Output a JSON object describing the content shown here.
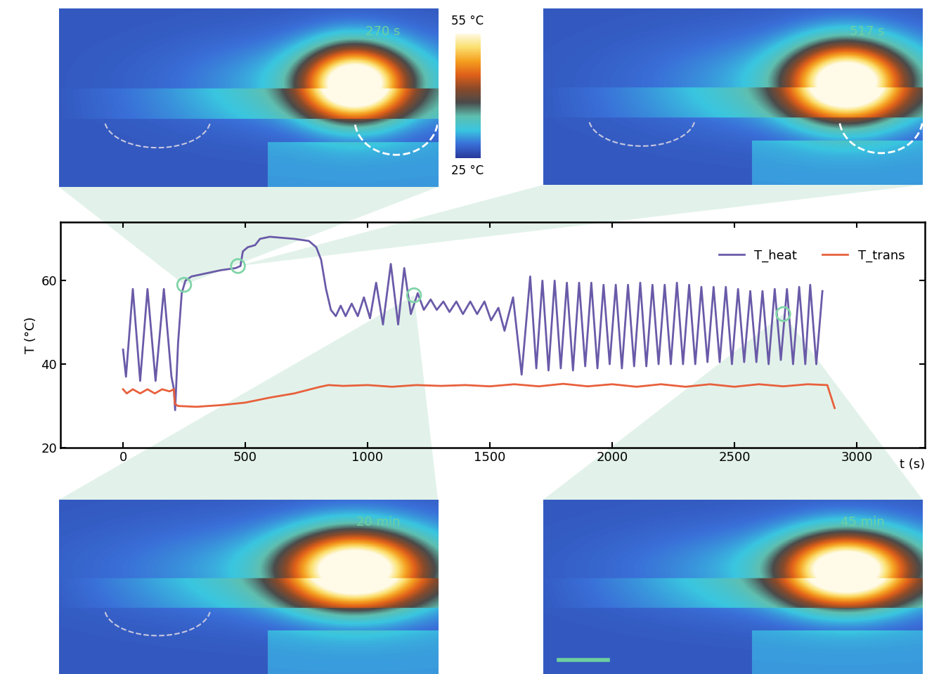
{
  "chart_data": {
    "type": "line",
    "xlabel": "t (s)",
    "ylabel": "T (°C)",
    "xlim": [
      -256,
      3279
    ],
    "xticks": [
      0,
      500,
      1000,
      1500,
      2000,
      2500,
      3000
    ],
    "ylim": [
      20,
      74
    ],
    "yticks": [
      20,
      40,
      60
    ],
    "legend": "upper right",
    "series": [
      {
        "name": "T_heat",
        "color": "#6a5aa8",
        "x": [
          0,
          12,
          40,
          70,
          100,
          133,
          167,
          198,
          208,
          213,
          225,
          240,
          255,
          280,
          320,
          400,
          460,
          480,
          490,
          510,
          540,
          560,
          600,
          700,
          760,
          790,
          810,
          830,
          850,
          870,
          890,
          910,
          935,
          960,
          985,
          1010,
          1035,
          1063,
          1095,
          1125,
          1150,
          1177,
          1205,
          1230,
          1258,
          1283,
          1310,
          1335,
          1363,
          1390,
          1420,
          1448,
          1478,
          1505,
          1535,
          1560,
          1595,
          1630,
          1665,
          1690,
          1715,
          1740,
          1765,
          1790,
          1815,
          1840,
          1865,
          1890,
          1915,
          1940,
          1965,
          1990,
          2015,
          2040,
          2065,
          2090,
          2115,
          2140,
          2165,
          2190,
          2215,
          2240,
          2265,
          2290,
          2315,
          2340,
          2365,
          2390,
          2415,
          2440,
          2465,
          2490,
          2515,
          2540,
          2565,
          2590,
          2615,
          2640,
          2665,
          2690,
          2715,
          2740,
          2765,
          2790,
          2810,
          2835,
          2860
        ],
        "values": [
          43.5,
          37,
          58,
          36,
          58,
          36,
          58,
          37,
          34,
          29,
          45,
          57,
          60,
          61,
          61.5,
          62.5,
          63,
          63.5,
          67,
          68,
          68.5,
          70,
          70.5,
          70,
          69.5,
          68,
          65,
          58,
          53,
          51.5,
          54,
          51.5,
          54.5,
          51.5,
          56,
          51,
          59.5,
          49.5,
          64,
          49.5,
          63,
          52,
          57,
          53,
          55.5,
          53,
          55,
          52.5,
          55,
          52,
          55,
          52,
          55,
          50.5,
          53.5,
          48,
          56,
          37.5,
          61,
          39,
          60,
          38.5,
          60,
          39,
          59.5,
          38.5,
          59.5,
          39.5,
          59.5,
          39,
          59,
          40,
          59,
          39,
          59,
          39.5,
          59.5,
          39.5,
          59,
          40,
          59,
          40,
          59.5,
          40,
          59,
          40,
          58.5,
          40.5,
          58.5,
          40.5,
          58.5,
          40,
          58,
          40.5,
          57.5,
          40.5,
          57.5,
          40,
          58,
          41,
          58,
          40,
          58.5,
          40,
          59,
          40,
          57.5
        ]
      },
      {
        "name": "T_trans",
        "color": "#e8603c",
        "x": [
          0,
          15,
          40,
          70,
          100,
          130,
          160,
          190,
          208,
          212,
          225,
          300,
          400,
          500,
          600,
          700,
          800,
          840,
          900,
          1000,
          1100,
          1200,
          1300,
          1400,
          1500,
          1600,
          1700,
          1800,
          1900,
          2000,
          2100,
          2200,
          2300,
          2400,
          2500,
          2600,
          2700,
          2800,
          2880,
          2910
        ],
        "values": [
          34,
          33,
          34,
          33,
          34,
          33,
          34,
          33.5,
          34,
          30.5,
          30,
          29.8,
          30.2,
          30.8,
          32,
          33,
          34.5,
          35,
          34.8,
          35,
          34.6,
          35,
          34.8,
          35,
          34.7,
          35.2,
          34.7,
          35.3,
          34.7,
          35.2,
          34.6,
          35.2,
          34.6,
          35.2,
          34.6,
          35.2,
          34.7,
          35.2,
          35,
          29.5
        ]
      }
    ],
    "markers": {
      "x": [
        250,
        470,
        1190,
        2700
      ],
      "y": [
        59,
        63.5,
        56.5,
        52
      ]
    }
  },
  "images": [
    {
      "label": "270 s"
    },
    {
      "label": "517 s"
    },
    {
      "label": "20 min"
    },
    {
      "label": "45 min"
    }
  ],
  "colorbar": {
    "range": [
      25,
      55
    ],
    "ticks": [
      {
        "value": 55,
        "label": "55 °C"
      },
      {
        "value": 25,
        "label": "25 °C"
      }
    ]
  }
}
